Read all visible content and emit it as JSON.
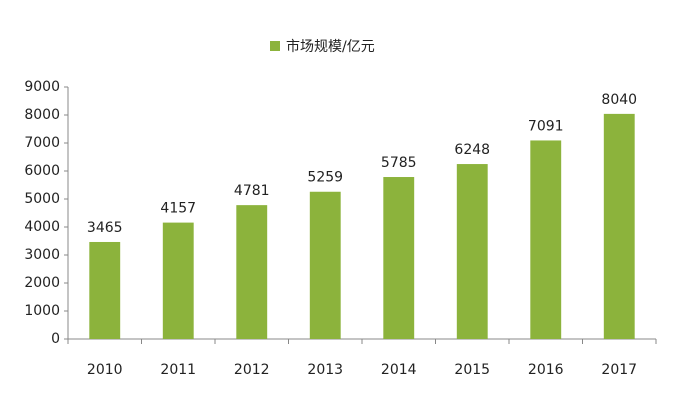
{
  "chart_data": {
    "type": "bar",
    "categories": [
      "2010",
      "2011",
      "2012",
      "2013",
      "2014",
      "2015",
      "2016",
      "2017"
    ],
    "series": [
      {
        "name": "市场规模/亿元",
        "color": "#8cb33c",
        "values": [
          3465,
          4157,
          4781,
          5259,
          5785,
          6248,
          7091,
          8040
        ]
      }
    ],
    "ylim": [
      0,
      9000
    ],
    "yticks": [
      0,
      1000,
      2000,
      3000,
      4000,
      5000,
      6000,
      7000,
      8000,
      9000
    ],
    "grid": false,
    "legend": "top"
  }
}
